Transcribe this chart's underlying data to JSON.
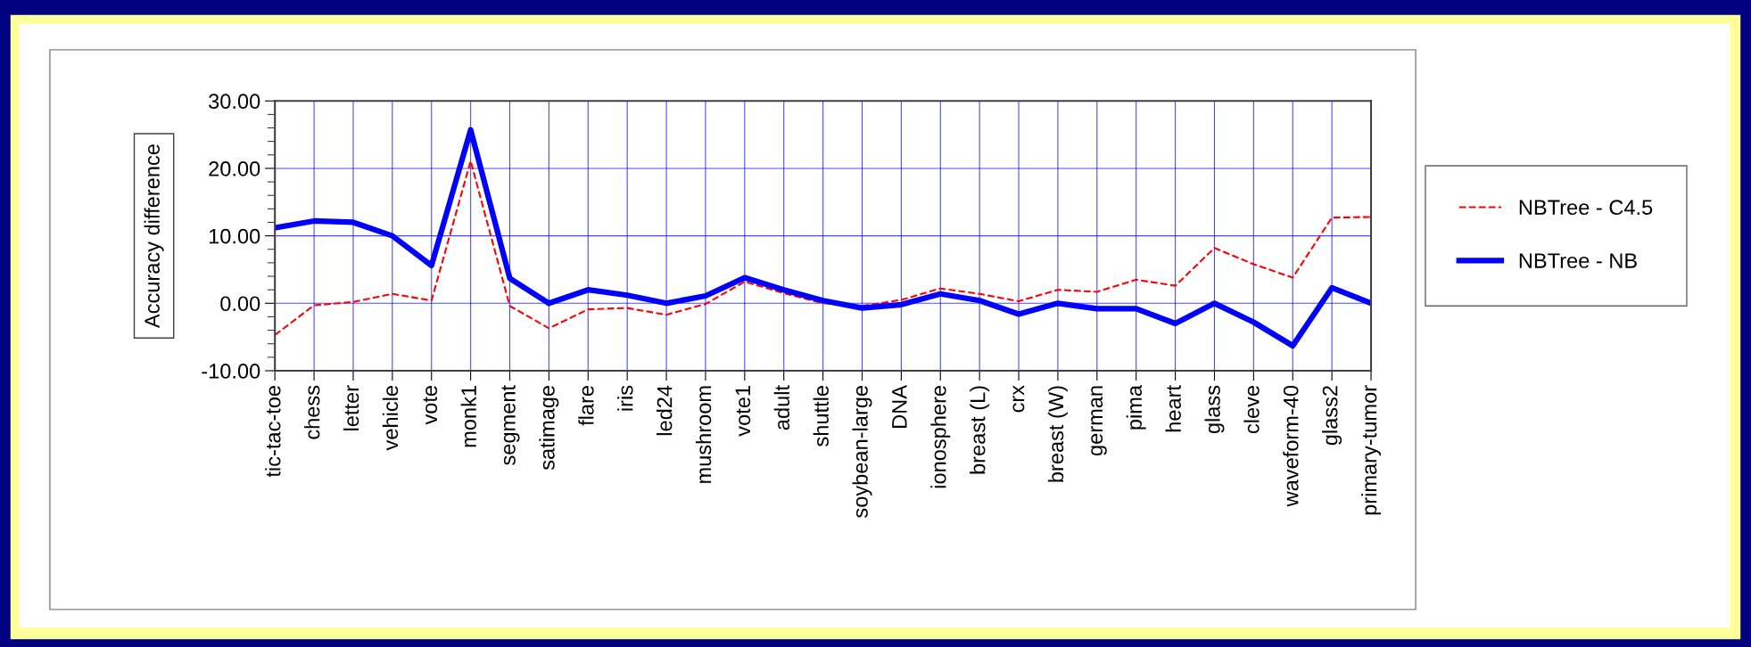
{
  "chart_data": {
    "type": "line",
    "ylabel": "Accuracy difference",
    "categories": [
      "tic-tac-toe",
      "chess",
      "letter",
      "vehicle",
      "vote",
      "monk1",
      "segment",
      "satimage",
      "flare",
      "iris",
      "led24",
      "mushroom",
      "vote1",
      "adult",
      "shuttle",
      "soybean-large",
      "DNA",
      "ionosphere",
      "breast (L)",
      "crx",
      "breast (W)",
      "german",
      "pima",
      "heart",
      "glass",
      "cleve",
      "waveform-40",
      "glass2",
      "primary-tumor"
    ],
    "series": [
      {
        "name": "NBTree - C4.5",
        "color": "#ff0000",
        "line_style": "dashed",
        "values": [
          -4.7,
          -0.3,
          0.2,
          1.4,
          0.4,
          21.1,
          -0.4,
          -3.7,
          -0.9,
          -0.7,
          -1.7,
          -0.1,
          3.2,
          1.5,
          0,
          -0.4,
          0.5,
          2.2,
          1.4,
          0.3,
          2.0,
          1.7,
          3.5,
          2.6,
          8.2,
          5.8,
          3.8,
          12.7,
          12.8
        ]
      },
      {
        "name": "NBTree - NB",
        "color": "#0000ff",
        "line_style": "solid",
        "values": [
          11.2,
          12.2,
          12.0,
          10.0,
          5.6,
          25.7,
          3.7,
          0,
          2.0,
          1.2,
          0,
          1.1,
          3.8,
          2.0,
          0.4,
          -0.7,
          -0.2,
          1.4,
          0.4,
          -1.6,
          0,
          -0.8,
          -0.8,
          -3.0,
          0,
          -2.8,
          -6.3,
          2.3,
          0
        ]
      }
    ],
    "ylim": [
      -10,
      30
    ],
    "yticks": [
      {
        "value": -10,
        "label": "-10.00"
      },
      {
        "value": 0,
        "label": "0.00"
      },
      {
        "value": 10,
        "label": "10.00"
      },
      {
        "value": 20,
        "label": "20.00"
      },
      {
        "value": 30,
        "label": "30.00"
      }
    ],
    "grid": true,
    "legend": "right",
    "marker": "none"
  }
}
